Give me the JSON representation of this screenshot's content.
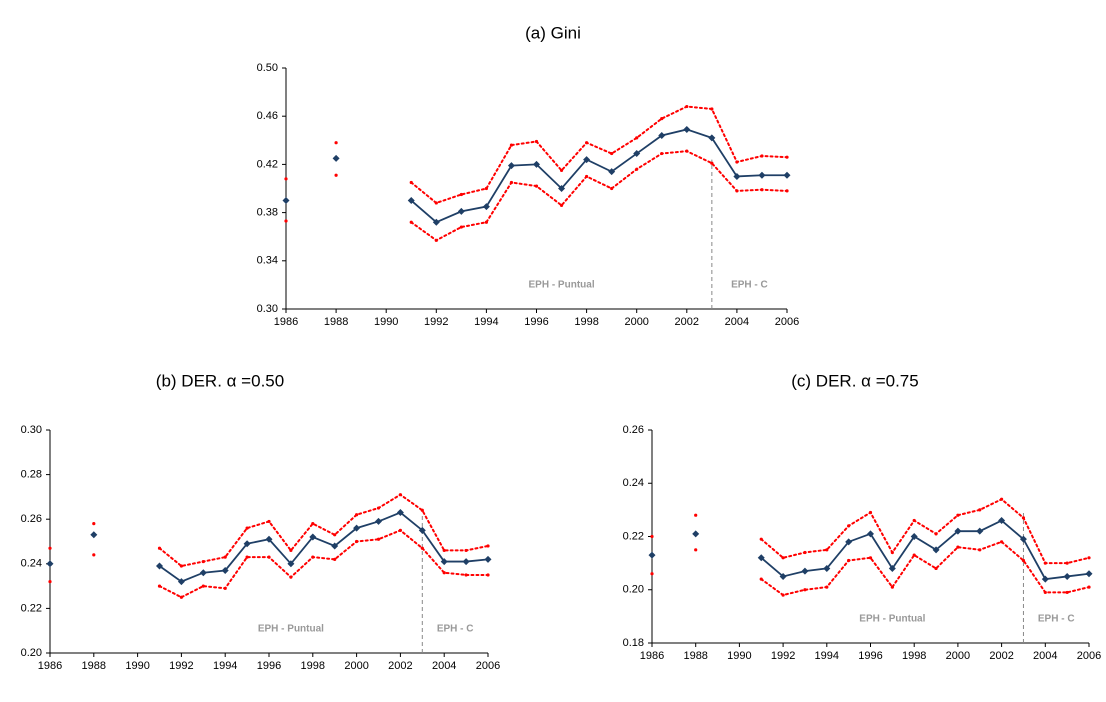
{
  "chart_data": [
    {
      "type": "line",
      "title": "(a) Gini",
      "x": [
        1986,
        1987,
        1988,
        1989,
        1990,
        1991,
        1992,
        1993,
        1994,
        1995,
        1996,
        1997,
        1998,
        1999,
        2000,
        2001,
        2002,
        2003,
        2004,
        2005,
        2006
      ],
      "series": [
        {
          "color": "#1f3f66",
          "marker": "diamond",
          "dashed": false,
          "values": [
            0.39,
            null,
            0.425,
            null,
            null,
            0.39,
            0.372,
            0.381,
            0.385,
            0.419,
            0.42,
            0.4,
            0.424,
            0.414,
            0.429,
            0.444,
            0.449,
            0.442,
            0.41,
            0.411,
            0.411
          ]
        },
        {
          "color": "#ff0000",
          "marker": "dot",
          "dashed": true,
          "values": [
            0.408,
            null,
            0.438,
            null,
            null,
            0.405,
            0.388,
            0.395,
            0.4,
            0.436,
            0.439,
            0.415,
            0.438,
            0.429,
            0.442,
            0.458,
            0.468,
            0.466,
            0.422,
            0.427,
            0.426
          ]
        },
        {
          "color": "#ff0000",
          "marker": "dot",
          "dashed": true,
          "values": [
            0.373,
            null,
            0.411,
            null,
            null,
            0.372,
            0.357,
            0.368,
            0.372,
            0.405,
            0.402,
            0.386,
            0.41,
            0.4,
            0.416,
            0.429,
            0.431,
            0.421,
            0.398,
            0.399,
            0.398
          ]
        }
      ],
      "xlim": [
        1986,
        2006
      ],
      "xticks": [
        1986,
        1988,
        1990,
        1992,
        1994,
        1996,
        1998,
        2000,
        2002,
        2004,
        2006
      ],
      "ylim": [
        0.3,
        0.5
      ],
      "yticks": [
        {
          "value": 0.3,
          "label": "0.30"
        },
        0.34,
        0.38,
        0.42,
        0.46,
        {
          "value": 0.5,
          "label": "0.50"
        }
      ],
      "vline": 2003,
      "annotations": [
        "EPH - Puntual",
        "EPH - C"
      ],
      "grid": false
    },
    {
      "type": "line",
      "title": "(b) DER. α =0.50",
      "x": [
        1986,
        1987,
        1988,
        1989,
        1990,
        1991,
        1992,
        1993,
        1994,
        1995,
        1996,
        1997,
        1998,
        1999,
        2000,
        2001,
        2002,
        2003,
        2004,
        2005,
        2006
      ],
      "series": [
        {
          "color": "#1f3f66",
          "marker": "diamond",
          "dashed": false,
          "values": [
            0.24,
            null,
            0.253,
            null,
            null,
            0.239,
            0.232,
            0.236,
            0.237,
            0.249,
            0.251,
            0.24,
            0.252,
            0.248,
            0.256,
            0.259,
            0.263,
            0.255,
            0.241,
            0.241,
            0.242
          ]
        },
        {
          "color": "#ff0000",
          "marker": "dot",
          "dashed": true,
          "values": [
            0.247,
            null,
            0.258,
            null,
            null,
            0.247,
            0.239,
            0.241,
            0.243,
            0.256,
            0.259,
            0.246,
            0.258,
            0.253,
            0.262,
            0.265,
            0.271,
            0.264,
            0.246,
            0.246,
            0.248
          ]
        },
        {
          "color": "#ff0000",
          "marker": "dot",
          "dashed": true,
          "values": [
            0.232,
            null,
            0.244,
            null,
            null,
            0.23,
            0.225,
            0.23,
            0.229,
            0.243,
            0.243,
            0.234,
            0.243,
            0.242,
            0.25,
            0.251,
            0.255,
            0.247,
            0.236,
            0.235,
            0.235
          ]
        }
      ],
      "xlim": [
        1986,
        2006
      ],
      "xticks": [
        1986,
        1988,
        1990,
        1992,
        1994,
        1996,
        1998,
        2000,
        2002,
        2004,
        2006
      ],
      "ylim": [
        0.2,
        0.3
      ],
      "yticks": [
        {
          "value": 0.2,
          "label": "0.20"
        },
        0.22,
        0.24,
        0.26,
        0.28,
        {
          "value": 0.3,
          "label": "0.30"
        }
      ],
      "vline": 2003,
      "annotations": [
        "EPH - Puntual",
        "EPH - C"
      ],
      "grid": false
    },
    {
      "type": "line",
      "title": "(c) DER. α =0.75",
      "x": [
        1986,
        1987,
        1988,
        1989,
        1990,
        1991,
        1992,
        1993,
        1994,
        1995,
        1996,
        1997,
        1998,
        1999,
        2000,
        2001,
        2002,
        2003,
        2004,
        2005,
        2006
      ],
      "series": [
        {
          "color": "#1f3f66",
          "marker": "diamond",
          "dashed": false,
          "values": [
            0.213,
            null,
            0.221,
            null,
            null,
            0.212,
            0.205,
            0.207,
            0.208,
            0.218,
            0.221,
            0.208,
            0.22,
            0.215,
            0.222,
            0.222,
            0.226,
            0.219,
            0.204,
            0.205,
            0.206
          ]
        },
        {
          "color": "#ff0000",
          "marker": "dot",
          "dashed": true,
          "values": [
            0.22,
            null,
            0.228,
            null,
            null,
            0.219,
            0.212,
            0.214,
            0.215,
            0.224,
            0.229,
            0.214,
            0.226,
            0.221,
            0.228,
            0.23,
            0.234,
            0.227,
            0.21,
            0.21,
            0.212
          ]
        },
        {
          "color": "#ff0000",
          "marker": "dot",
          "dashed": true,
          "values": [
            0.206,
            null,
            0.215,
            null,
            null,
            0.204,
            0.198,
            0.2,
            0.201,
            0.211,
            0.212,
            0.201,
            0.213,
            0.208,
            0.216,
            0.215,
            0.218,
            0.211,
            0.199,
            0.199,
            0.201
          ]
        }
      ],
      "xlim": [
        1986,
        2006
      ],
      "xticks": [
        1986,
        1988,
        1990,
        1992,
        1994,
        1996,
        1998,
        2000,
        2002,
        2004,
        2006
      ],
      "ylim": [
        0.18,
        0.26
      ],
      "yticks": [
        0.18,
        {
          "value": 0.2,
          "label": "0.20"
        },
        0.22,
        0.24,
        0.26
      ],
      "vline": 2003,
      "annotations": [
        "EPH - Puntual",
        "EPH - C"
      ],
      "grid": false
    }
  ]
}
